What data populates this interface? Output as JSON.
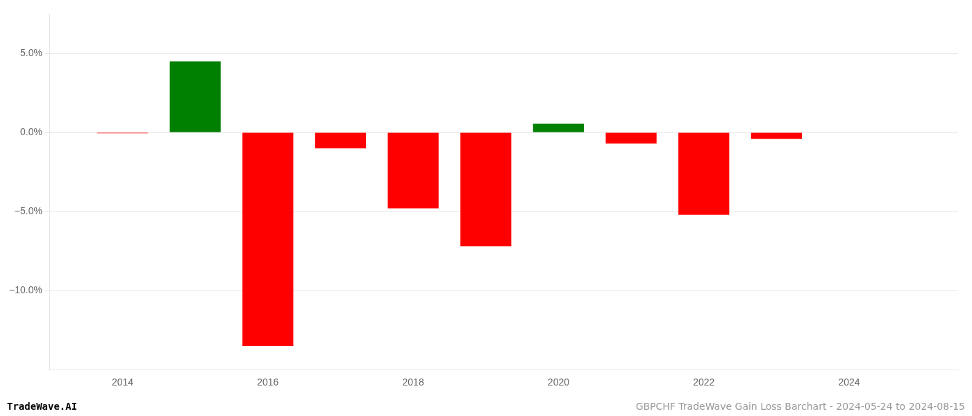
{
  "chart_data": {
    "type": "bar",
    "x": [
      2014,
      2015,
      2016,
      2017,
      2018,
      2019,
      2020,
      2021,
      2022,
      2023
    ],
    "values": [
      -0.05,
      4.5,
      -13.5,
      -1.0,
      -4.8,
      -7.2,
      0.55,
      -0.7,
      -5.2,
      -0.4
    ],
    "colors": [
      "#ff0000",
      "#008000",
      "#ff0000",
      "#ff0000",
      "#ff0000",
      "#ff0000",
      "#008000",
      "#ff0000",
      "#ff0000",
      "#ff0000"
    ],
    "xlim": [
      2013.0,
      2025.5
    ],
    "xticks": [
      2014,
      2016,
      2018,
      2020,
      2022,
      2024
    ],
    "ylim": [
      -15.0,
      7.5
    ],
    "yticks": [
      {
        "value": 5.0,
        "label": "5.0%"
      },
      {
        "value": 0.0,
        "label": "0.0%"
      },
      {
        "value": -5.0,
        "label": "−5.0%"
      },
      {
        "value": -10.0,
        "label": "−10.0%"
      }
    ],
    "grid": true,
    "annotations": [
      "TradeWave.AI",
      "GBPCHF TradeWave Gain Loss Barchart - 2024-05-24 to 2024-08-15"
    ]
  }
}
